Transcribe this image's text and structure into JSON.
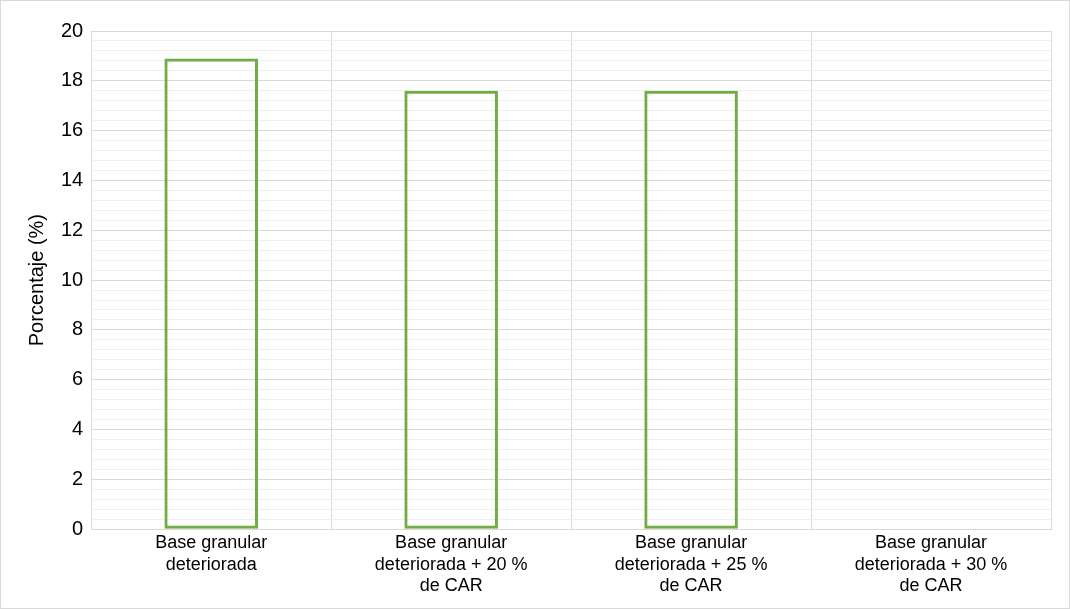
{
  "chart_data": {
    "type": "bar",
    "ylabel": "Porcentaje (%)",
    "categories": [
      "Base granular deteriorada",
      "Base granular deteriorada + 20 % de CAR",
      "Base granular deteriorada + 25 % de CAR",
      "Base granular deteriorada + 30 % de CAR"
    ],
    "values": [
      18.9,
      17.6,
      17.6,
      null
    ],
    "color": "#70ad47",
    "ylim": [
      0,
      20
    ],
    "yticks": [
      0,
      {
        "value": 0.4,
        "label": null
      },
      {
        "value": 0.8,
        "label": null
      },
      {
        "value": 1.2,
        "label": null
      },
      {
        "value": 1.6,
        "label": null
      },
      2,
      {
        "value": 2.4,
        "label": null
      },
      {
        "value": 2.8,
        "label": null
      },
      {
        "value": 3.2,
        "label": null
      },
      {
        "value": 3.6,
        "label": null
      },
      4,
      {
        "value": 4.4,
        "label": null
      },
      {
        "value": 4.8,
        "label": null
      },
      {
        "value": 5.2,
        "label": null
      },
      {
        "value": 5.6,
        "label": null
      },
      6,
      {
        "value": 6.4,
        "label": null
      },
      {
        "value": 6.8,
        "label": null
      },
      {
        "value": 7.2,
        "label": null
      },
      {
        "value": 7.6,
        "label": null
      },
      8,
      {
        "value": 8.4,
        "label": null
      },
      {
        "value": 8.8,
        "label": null
      },
      {
        "value": 9.2,
        "label": null
      },
      {
        "value": 9.6,
        "label": null
      },
      10,
      {
        "value": 10.4,
        "label": null
      },
      {
        "value": 10.8,
        "label": null
      },
      {
        "value": 11.2,
        "label": null
      },
      {
        "value": 11.6,
        "label": null
      },
      12,
      {
        "value": 12.4,
        "label": null
      },
      {
        "value": 12.8,
        "label": null
      },
      {
        "value": 13.2,
        "label": null
      },
      {
        "value": 13.6,
        "label": null
      },
      14,
      {
        "value": 14.4,
        "label": null
      },
      {
        "value": 14.8,
        "label": null
      },
      {
        "value": 15.2,
        "label": null
      },
      {
        "value": 15.6,
        "label": null
      },
      16,
      {
        "value": 16.4,
        "label": null
      },
      {
        "value": 16.8,
        "label": null
      },
      {
        "value": 17.2,
        "label": null
      },
      {
        "value": 17.6,
        "label": null
      },
      18,
      {
        "value": 18.4,
        "label": null
      },
      {
        "value": 18.8,
        "label": null
      },
      {
        "value": 19.2,
        "label": null
      },
      {
        "value": 19.6,
        "label": null
      },
      20
    ],
    "grid": true
  }
}
